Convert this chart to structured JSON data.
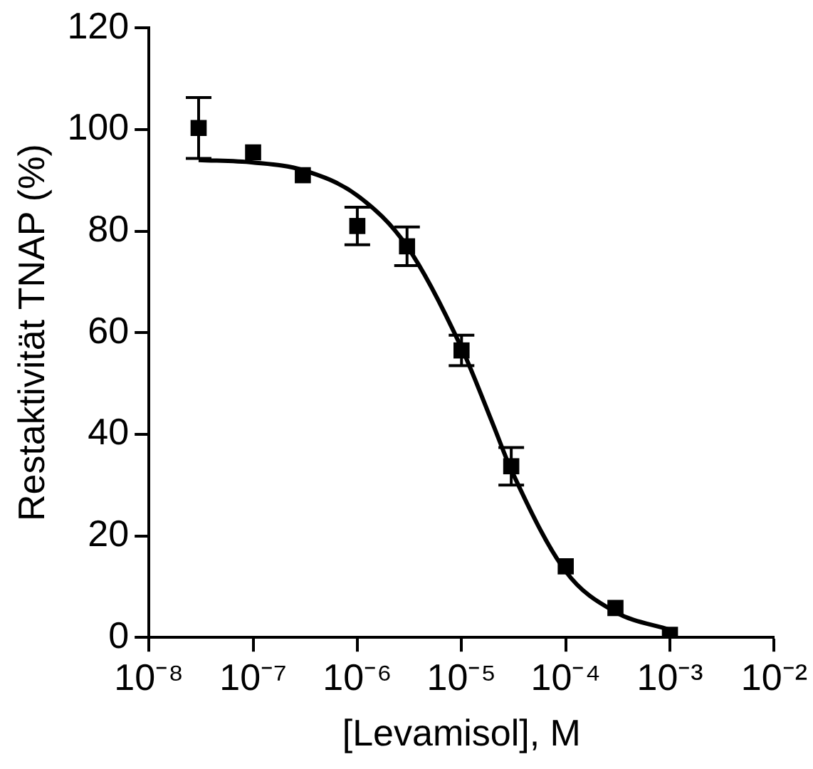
{
  "chart_data": {
    "type": "scatter",
    "xlabel": "[Levamisol], M",
    "ylabel": "Restaktivität TNAP (%)",
    "log": "x",
    "xlim": [
      1e-08,
      0.01
    ],
    "xticks": [
      {
        "value": 1e-08,
        "label": "10⁻⁸"
      },
      {
        "value": 1e-07,
        "label": "10⁻⁷"
      },
      {
        "value": 1e-06,
        "label": "10⁻⁶"
      },
      {
        "value": 1e-05,
        "label": "10⁻⁵"
      },
      {
        "value": 0.0001,
        "label": "10⁻⁴"
      },
      {
        "value": 0.001,
        "label": "10⁻³"
      },
      {
        "value": 0.01,
        "label": "10⁻²"
      }
    ],
    "ylim": [
      0,
      120
    ],
    "yticks": [
      0,
      20,
      40,
      60,
      80,
      100,
      120
    ],
    "legend": false,
    "series": [
      {
        "color": "#000000",
        "marker": "square",
        "x": [
          3e-08,
          1e-07,
          3e-07,
          1e-06,
          3e-06,
          1e-05,
          3e-05,
          0.0001,
          0.0003,
          0.001
        ],
        "values": [
          100.3,
          95.5,
          91,
          81,
          77,
          56.5,
          33.7,
          14,
          5.8,
          0.5
        ],
        "errors": [
          6,
          null,
          null,
          3.7,
          3.8,
          3,
          3.7,
          null,
          null,
          null
        ]
      },
      {
        "type": "line",
        "color": "#000000",
        "marker": "none",
        "line_style": "solid",
        "x": [
          3e-08,
          1e-07,
          3e-07,
          1e-06,
          3e-06,
          1e-05,
          2e-05,
          3e-05,
          0.0001,
          0.0003,
          0.001
        ],
        "values": [
          94,
          93.5,
          92,
          87,
          77,
          57,
          42,
          33,
          13,
          5,
          1.5
        ]
      }
    ]
  }
}
